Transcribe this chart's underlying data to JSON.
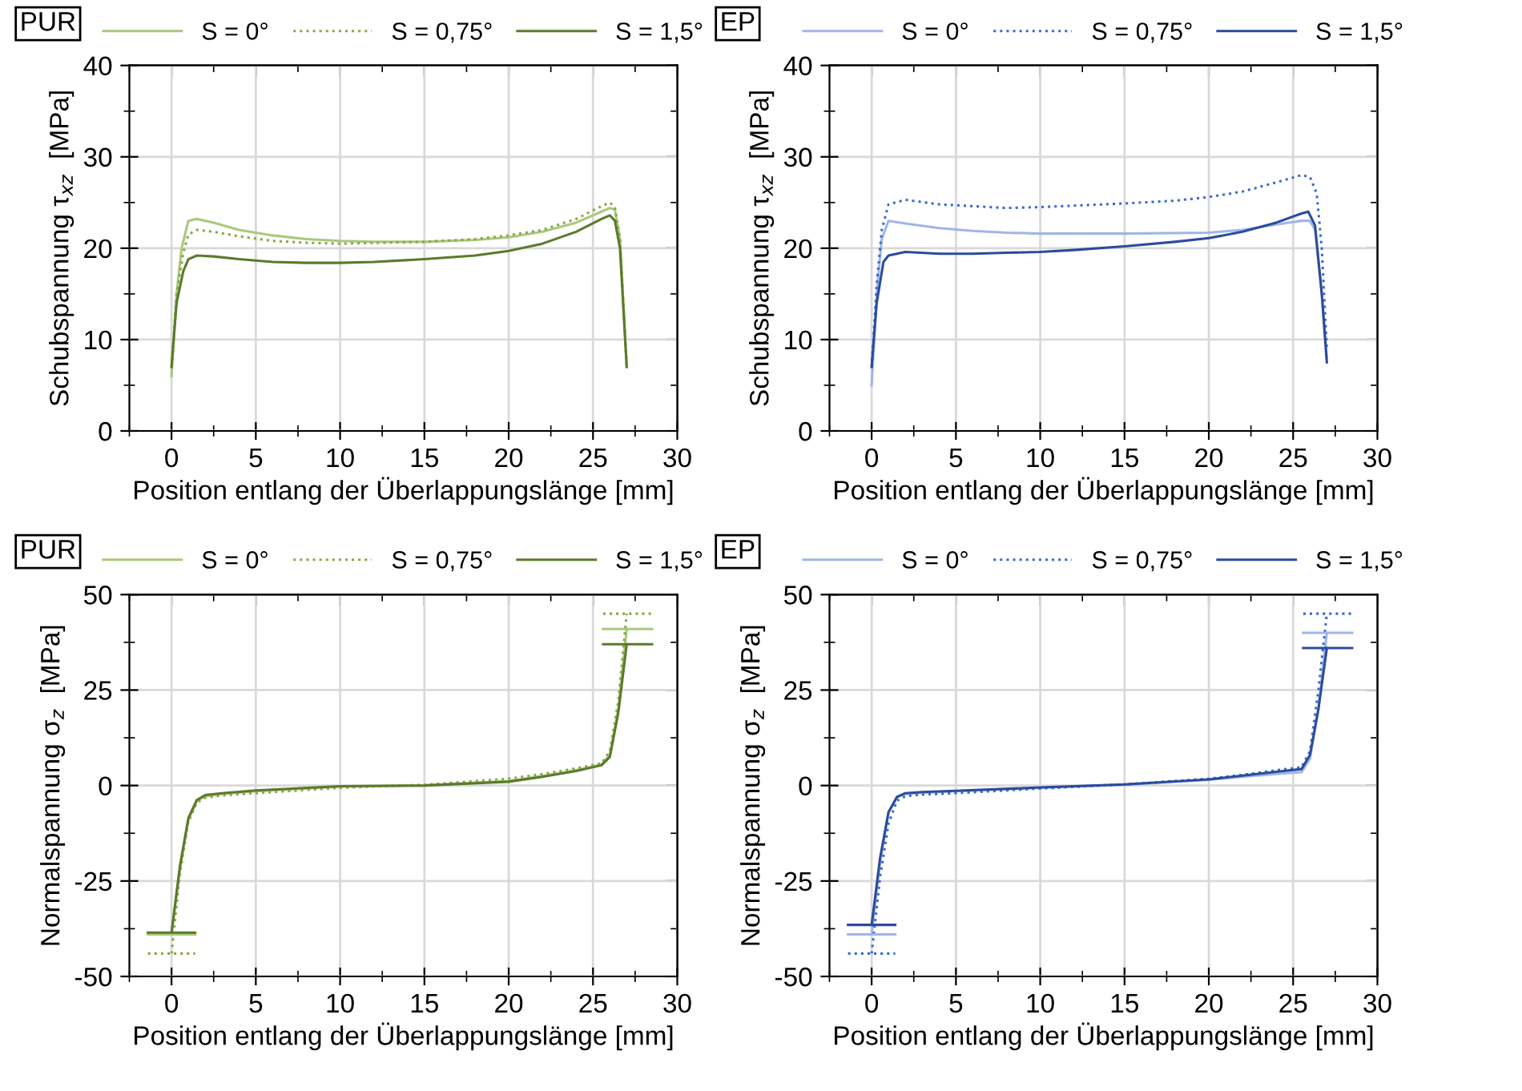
{
  "chart_data": [
    {
      "type": "line",
      "title": "PUR",
      "xlabel": "Position entlang der Überlappungslänge [mm]",
      "ylabel": "Schubspannung τ$_{xz}$  [MPa]",
      "xlim": [
        -2.5,
        30
      ],
      "xticks": [
        0,
        5,
        10,
        15,
        20,
        25,
        30
      ],
      "ylim": [
        0,
        40
      ],
      "yticks": [
        0,
        10,
        20,
        30,
        40
      ],
      "grid": true,
      "legend": "top",
      "series": [
        {
          "name": "S = 0°",
          "color": "#a9c97c",
          "line_style": "solid",
          "x": [
            0,
            0.3,
            0.6,
            1,
            1.5,
            2.5,
            4,
            6,
            8,
            10,
            12,
            15,
            18,
            20,
            22,
            24,
            25.5,
            26,
            26.3,
            26.6,
            27
          ],
          "values": [
            6,
            15,
            20,
            23,
            23.2,
            22.8,
            22,
            21.4,
            21,
            20.8,
            20.7,
            20.7,
            20.9,
            21.2,
            21.8,
            22.8,
            24,
            24.4,
            24.2,
            21,
            7
          ]
        },
        {
          "name": "S = 0,75°",
          "color": "#86a94a",
          "line_style": "dotted",
          "x": [
            0,
            0.3,
            0.7,
            1,
            1.5,
            2.5,
            4,
            6,
            8,
            10,
            15,
            18,
            20,
            22,
            24,
            25.5,
            26,
            26.3,
            26.6,
            27
          ],
          "values": [
            7,
            15,
            19.5,
            21.5,
            22,
            21.8,
            21.3,
            20.8,
            20.6,
            20.5,
            20.7,
            21,
            21.4,
            22,
            23.2,
            24.6,
            25,
            24.5,
            21,
            7
          ]
        },
        {
          "name": "S = 1,5°",
          "color": "#5b7a2c",
          "line_style": "solid",
          "x": [
            0,
            0.3,
            0.7,
            1,
            1.5,
            2.5,
            4,
            6,
            8,
            10,
            12,
            15,
            18,
            20,
            22,
            24,
            25.5,
            26,
            26.3,
            26.6,
            27
          ],
          "values": [
            7,
            14,
            17.5,
            18.8,
            19.2,
            19.1,
            18.8,
            18.5,
            18.4,
            18.4,
            18.5,
            18.8,
            19.2,
            19.7,
            20.5,
            21.8,
            23.2,
            23.6,
            23,
            20,
            7
          ]
        }
      ]
    },
    {
      "type": "line",
      "title": "EP",
      "xlabel": "Position entlang der Überlappungslänge [mm]",
      "ylabel": "Schubspannung τ$_{xz}$  [MPa]",
      "xlim": [
        -2.5,
        30
      ],
      "xticks": [
        0,
        5,
        10,
        15,
        20,
        25,
        30
      ],
      "ylim": [
        0,
        40
      ],
      "yticks": [
        0,
        10,
        20,
        30,
        40
      ],
      "grid": true,
      "legend": "top",
      "series": [
        {
          "name": "S = 0°",
          "color": "#a0b6e8",
          "line_style": "solid",
          "x": [
            0,
            0.3,
            0.6,
            1,
            2,
            4,
            6,
            8,
            10,
            15,
            20,
            22,
            24,
            25.5,
            26,
            26.3,
            26.7,
            27
          ],
          "values": [
            5,
            15,
            21,
            23,
            22.7,
            22.2,
            21.9,
            21.7,
            21.6,
            21.6,
            21.7,
            22,
            22.6,
            23,
            23,
            22,
            15,
            8
          ]
        },
        {
          "name": "S = 0,75°",
          "color": "#3d69d1",
          "line_style": "dotted",
          "x": [
            0,
            0.3,
            0.6,
            1,
            2,
            4,
            6,
            8,
            10,
            15,
            18,
            20,
            22,
            24,
            25.5,
            26,
            26.4,
            26.7,
            27
          ],
          "values": [
            7,
            16,
            22,
            24.8,
            25.3,
            24.8,
            24.6,
            24.4,
            24.5,
            24.9,
            25.2,
            25.6,
            26.2,
            27.2,
            28,
            27.8,
            26,
            20,
            9
          ]
        },
        {
          "name": "S = 1,5°",
          "color": "#2c4b9c",
          "line_style": "solid",
          "x": [
            0,
            0.3,
            0.7,
            1,
            2,
            4,
            6,
            8,
            10,
            12,
            15,
            18,
            20,
            22,
            24,
            25.5,
            25.9,
            26.3,
            26.7,
            27
          ],
          "values": [
            7,
            14,
            18.5,
            19.2,
            19.6,
            19.4,
            19.4,
            19.5,
            19.6,
            19.8,
            20.2,
            20.7,
            21.1,
            21.8,
            22.8,
            23.8,
            24,
            22.5,
            15,
            7.5
          ]
        }
      ]
    },
    {
      "type": "line",
      "title": "PUR",
      "xlabel": "Position entlang der Überlappungslänge [mm]",
      "ylabel": "Normalspannung σ$_{z}$  [MPa]",
      "xlim": [
        -2.5,
        30
      ],
      "xticks": [
        0,
        5,
        10,
        15,
        20,
        25,
        30
      ],
      "ylim": [
        -50,
        50
      ],
      "yticks": [
        -50,
        -25,
        0,
        25,
        50
      ],
      "grid": true,
      "legend": "top",
      "series": [
        {
          "name": "S = 0°",
          "color": "#a9c97c",
          "line_style": "solid",
          "x": [
            0,
            0.5,
            1,
            1.5,
            2,
            3,
            5,
            10,
            15,
            20,
            22,
            24,
            25.5,
            26,
            26.5,
            27
          ],
          "values": [
            -39,
            -22,
            -9,
            -4,
            -2.8,
            -2.2,
            -1.5,
            -0.3,
            0,
            1.2,
            2.5,
            4,
            5.5,
            8,
            20,
            41
          ]
        },
        {
          "name": "S = 0,75°",
          "color": "#86a94a",
          "line_style": "dotted",
          "x": [
            0,
            0.5,
            1,
            1.5,
            2,
            3,
            5,
            10,
            15,
            20,
            22,
            24,
            25.5,
            26,
            26.5,
            27
          ],
          "values": [
            -44,
            -23,
            -9.5,
            -4.5,
            -3.2,
            -2.6,
            -2,
            -0.6,
            0.2,
            1.8,
            3,
            4.5,
            5.8,
            9,
            22,
            45
          ]
        },
        {
          "name": "S = 1,5°",
          "color": "#5b7a2c",
          "line_style": "solid",
          "x": [
            0,
            0.5,
            1,
            1.5,
            2,
            3,
            5,
            10,
            15,
            20,
            22,
            24,
            25.5,
            26,
            26.5,
            27
          ],
          "values": [
            -38.5,
            -21,
            -8.5,
            -3.8,
            -2.5,
            -2,
            -1.3,
            -0.2,
            0,
            1,
            2.3,
            3.8,
            5.3,
            7.5,
            19,
            37
          ]
        },
        {
          "color": "#a9c97c",
          "line_style": "solid",
          "x": [
            -1.4,
            1.4
          ],
          "values": [
            -39,
            -39
          ]
        },
        {
          "color": "#86a94a",
          "line_style": "dotted",
          "x": [
            -1.4,
            1.4
          ],
          "values": [
            -44,
            -44
          ]
        },
        {
          "color": "#5b7a2c",
          "line_style": "solid",
          "x": [
            -1.4,
            1.4
          ],
          "values": [
            -38.5,
            -38.5
          ]
        },
        {
          "color": "#a9c97c",
          "line_style": "solid",
          "x": [
            25.6,
            28.5
          ],
          "values": [
            41,
            41
          ]
        },
        {
          "color": "#86a94a",
          "line_style": "dotted",
          "x": [
            25.6,
            28.5
          ],
          "values": [
            45,
            45
          ]
        },
        {
          "color": "#5b7a2c",
          "line_style": "solid",
          "x": [
            25.6,
            28.5
          ],
          "values": [
            37,
            37
          ]
        }
      ]
    },
    {
      "type": "line",
      "title": "EP",
      "xlabel": "Position entlang der Überlappungslänge [mm]",
      "ylabel": "Normalspannung σ$_{z}$  [MPa]",
      "xlim": [
        -2.5,
        30
      ],
      "xticks": [
        0,
        5,
        10,
        15,
        20,
        25,
        30
      ],
      "ylim": [
        -50,
        50
      ],
      "yticks": [
        -50,
        -25,
        0,
        25,
        50
      ],
      "grid": true,
      "legend": "top",
      "series": [
        {
          "name": "S = 0°",
          "color": "#a0b6e8",
          "line_style": "solid",
          "x": [
            0,
            0.5,
            1,
            1.5,
            2,
            3,
            5,
            10,
            15,
            20,
            22,
            24,
            25.5,
            26,
            26.5,
            27
          ],
          "values": [
            -39,
            -20,
            -7,
            -3,
            -2.2,
            -1.9,
            -1.5,
            -0.6,
            0.2,
            1.5,
            2.3,
            3,
            3.5,
            7,
            20,
            40
          ]
        },
        {
          "name": "S = 0,75°",
          "color": "#3d69d1",
          "line_style": "dotted",
          "x": [
            0,
            0.5,
            1,
            1.5,
            2,
            3,
            5,
            10,
            15,
            20,
            22,
            24,
            25.5,
            26,
            26.5,
            27
          ],
          "values": [
            -44,
            -24,
            -10,
            -4,
            -2.8,
            -2.4,
            -2,
            -0.8,
            0.3,
            1.8,
            2.8,
            4,
            4.8,
            9,
            25,
            45
          ]
        },
        {
          "name": "S = 1,5°",
          "color": "#2c4b9c",
          "line_style": "solid",
          "x": [
            0,
            0.5,
            1,
            1.5,
            2,
            3,
            5,
            10,
            15,
            20,
            22,
            24,
            25.5,
            26,
            26.5,
            27
          ],
          "values": [
            -36.5,
            -19,
            -7,
            -3,
            -2,
            -1.7,
            -1.4,
            -0.5,
            0.3,
            1.6,
            2.6,
            3.6,
            4.3,
            8,
            20,
            36
          ]
        },
        {
          "color": "#a0b6e8",
          "line_style": "solid",
          "x": [
            -1.4,
            1.4
          ],
          "values": [
            -39,
            -39
          ]
        },
        {
          "color": "#3d69d1",
          "line_style": "dotted",
          "x": [
            -1.4,
            1.4
          ],
          "values": [
            -44,
            -44
          ]
        },
        {
          "color": "#2c4b9c",
          "line_style": "solid",
          "x": [
            -1.4,
            1.4
          ],
          "values": [
            -36.5,
            -36.5
          ]
        },
        {
          "color": "#a0b6e8",
          "line_style": "solid",
          "x": [
            25.6,
            28.5
          ],
          "values": [
            40,
            40
          ]
        },
        {
          "color": "#3d69d1",
          "line_style": "dotted",
          "x": [
            25.6,
            28.5
          ],
          "values": [
            45,
            45
          ]
        },
        {
          "color": "#2c4b9c",
          "line_style": "solid",
          "x": [
            25.6,
            28.5
          ],
          "values": [
            36,
            36
          ]
        }
      ]
    }
  ]
}
